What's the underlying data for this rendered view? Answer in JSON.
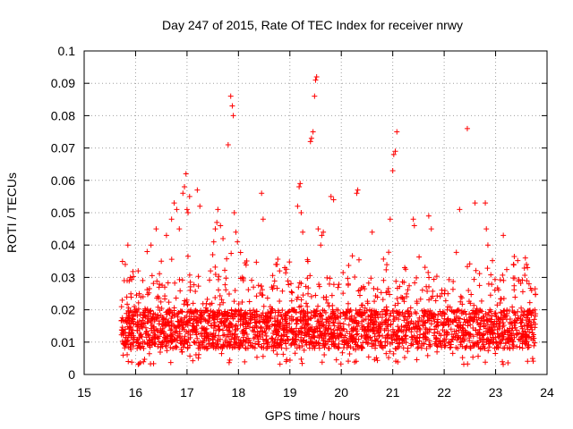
{
  "chart_data": {
    "type": "scatter",
    "title": "Day 247 of 2015, Rate Of TEC Index for receiver nrwy",
    "xlabel": "GPS time / hours",
    "ylabel": "ROTI / TECUs",
    "xlim": [
      15,
      24
    ],
    "ylim": [
      0,
      0.1
    ],
    "grid": true,
    "marker": "+",
    "marker_color": "#ff0000",
    "x_ticks": [
      "15",
      "16",
      "17",
      "18",
      "19",
      "20",
      "21",
      "22",
      "23",
      "24"
    ],
    "y_ticks": [
      "0",
      "0.01",
      "0.02",
      "0.03",
      "0.04",
      "0.05",
      "0.06",
      "0.07",
      "0.08",
      "0.09",
      "0.1"
    ],
    "series": [
      {
        "name": "nrwy",
        "x": [
          15.78,
          15.8,
          15.85,
          15.9,
          16.05,
          16.3,
          16.4,
          16.5,
          16.6,
          16.7,
          16.75,
          16.8,
          16.85,
          16.92,
          16.95,
          16.98,
          17.0,
          17.02,
          17.05,
          17.2,
          17.25,
          17.5,
          17.52,
          17.55,
          17.58,
          17.6,
          17.65,
          17.7,
          17.8,
          17.85,
          17.88,
          17.9,
          17.92,
          17.95,
          17.98,
          18.45,
          18.48,
          18.75,
          18.8,
          18.9,
          19.15,
          19.18,
          19.2,
          19.22,
          19.25,
          19.4,
          19.42,
          19.45,
          19.48,
          19.5,
          19.52,
          19.55,
          19.6,
          19.62,
          19.65,
          19.8,
          19.85,
          20.3,
          20.32,
          20.6,
          20.95,
          21.0,
          21.02,
          21.05,
          21.08,
          21.4,
          21.42,
          21.7,
          21.75,
          22.3,
          22.45,
          22.6,
          22.8,
          22.82,
          22.85,
          23.15,
          23.6,
          23.62,
          23.65,
          23.7
        ],
        "y": [
          0.029,
          0.034,
          0.04,
          0.03,
          0.032,
          0.04,
          0.045,
          0.035,
          0.043,
          0.048,
          0.053,
          0.051,
          0.045,
          0.056,
          0.058,
          0.062,
          0.051,
          0.05,
          0.055,
          0.057,
          0.052,
          0.037,
          0.041,
          0.045,
          0.047,
          0.051,
          0.046,
          0.042,
          0.071,
          0.086,
          0.083,
          0.08,
          0.05,
          0.044,
          0.041,
          0.056,
          0.048,
          0.034,
          0.032,
          0.033,
          0.052,
          0.058,
          0.059,
          0.05,
          0.044,
          0.072,
          0.073,
          0.075,
          0.086,
          0.091,
          0.092,
          0.045,
          0.04,
          0.043,
          0.044,
          0.055,
          0.054,
          0.056,
          0.057,
          0.044,
          0.048,
          0.063,
          0.068,
          0.069,
          0.075,
          0.048,
          0.046,
          0.049,
          0.045,
          0.051,
          0.076,
          0.053,
          0.053,
          0.045,
          0.04,
          0.043,
          0.034,
          0.033,
          0.028,
          0.026
        ]
      }
    ],
    "dense_band": {
      "description": "dense cloud of + markers",
      "x_range": [
        15.72,
        23.78
      ],
      "y_range": [
        0.003,
        0.03
      ],
      "typical_y": [
        0.008,
        0.02
      ]
    }
  }
}
